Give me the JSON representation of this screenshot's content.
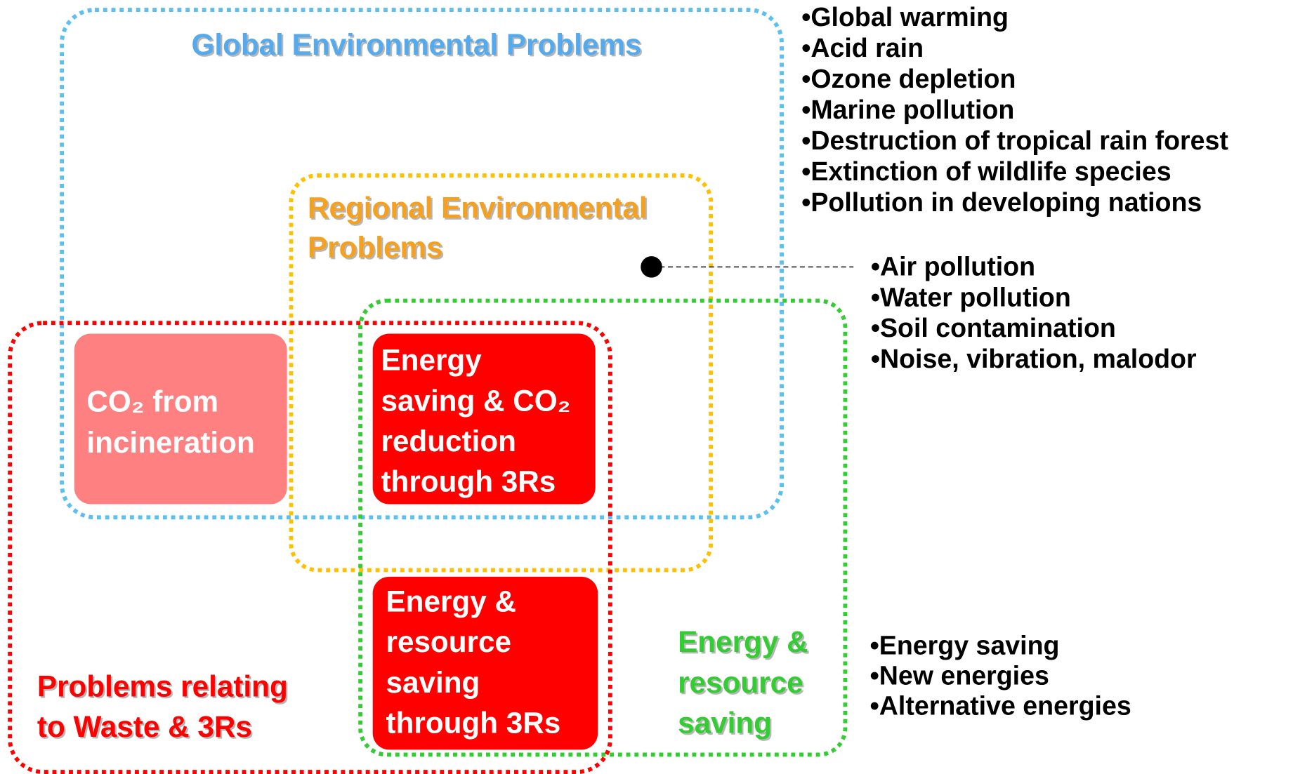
{
  "regions": [
    {
      "label": [
        "Global Environmental Problems"
      ]
    },
    {
      "label": [
        "Regional Environmental",
        "Problems"
      ]
    },
    {
      "label": [
        "Problems relating",
        "to Waste & 3Rs"
      ]
    },
    {
      "label": [
        "Energy &",
        "resource",
        "saving"
      ]
    }
  ],
  "boxes": [
    {
      "lines": [
        "CO₂ from",
        "incineration"
      ]
    },
    {
      "lines": [
        "Energy",
        "saving & CO₂",
        "reduction",
        "through 3Rs"
      ]
    },
    {
      "lines": [
        "Energy &",
        "resource",
        "saving",
        "through 3Rs"
      ]
    }
  ],
  "lists": [
    {
      "items": [
        "•Global warming",
        "•Acid rain",
        "•Ozone depletion",
        "•Marine pollution",
        "•Destruction of tropical rain forest",
        "•Extinction of wildlife species",
        "•Pollution in developing nations"
      ]
    },
    {
      "items": [
        "•Air pollution",
        "•Water pollution",
        "•Soil contamination",
        "•Noise, vibration, malodor"
      ]
    },
    {
      "items": [
        "•Energy saving",
        "•New energies",
        "•Alternative energies"
      ]
    }
  ]
}
